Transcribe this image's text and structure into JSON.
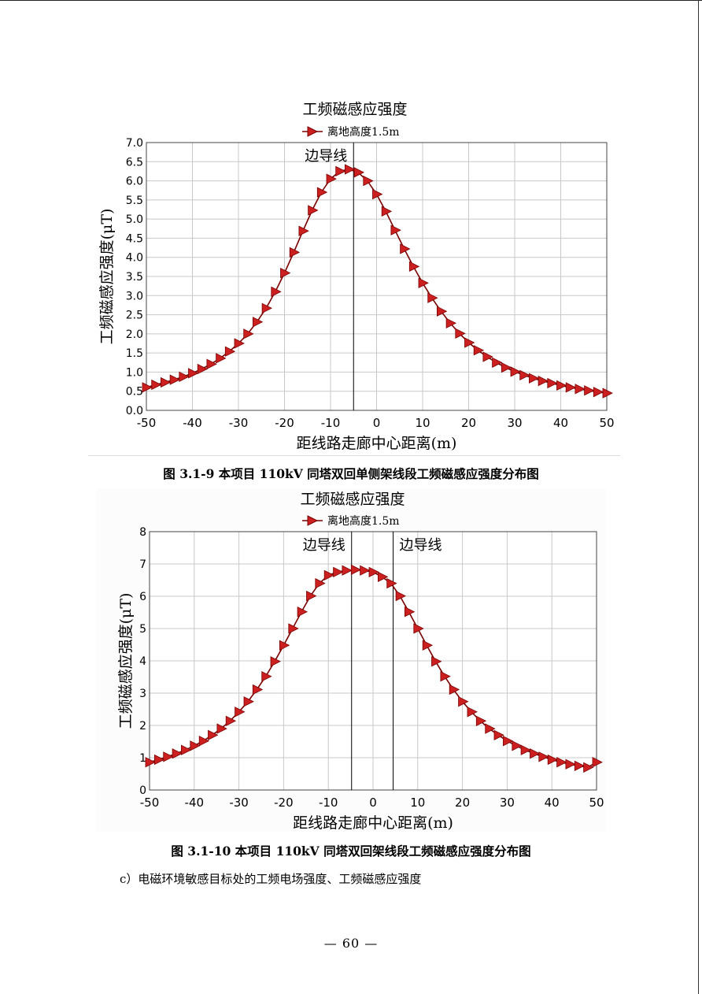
{
  "document": {
    "caption_1": "图 3.1-9  本项目 110kV 同塔双回单侧架线段工频磁感应强度分布图",
    "caption_2": "图 3.1-10    本项目 110kV 同塔双回架线段工频磁感应强度分布图",
    "body_text": "c）电磁环境敏感目标处的工频电场强度、工频磁感应强度",
    "page_number": "—  60  —"
  },
  "colors": {
    "marker_fill": "#cc1f1f",
    "marker_stroke": "#7a0000",
    "line": "#7a0000",
    "grid": "#c8c8c8",
    "axis": "#000000"
  },
  "chart_data": [
    {
      "type": "line",
      "title": "工频磁感应强度",
      "xlabel": "距线路走廊中心距离(m)",
      "ylabel": "工频磁感应强度(μT)",
      "xlim": [
        -50,
        50
      ],
      "ylim": [
        0,
        7
      ],
      "xticks": [
        -50,
        -40,
        -30,
        -20,
        -10,
        0,
        10,
        20,
        30,
        40,
        50
      ],
      "yticks": [
        0.0,
        0.5,
        1.0,
        1.5,
        2.0,
        2.5,
        3.0,
        3.5,
        4.0,
        4.5,
        5.0,
        5.5,
        6.0,
        6.5,
        7.0
      ],
      "ytick_decimals": 1,
      "grid": true,
      "legend_position": "top-center",
      "marker": "triangle-right",
      "annotations": [
        {
          "text": "边导线",
          "x": -5,
          "side": "left"
        }
      ],
      "series": [
        {
          "name": "离地高度1.5m",
          "x": [
            -50,
            -48,
            -46,
            -44,
            -42,
            -40,
            -38,
            -36,
            -34,
            -32,
            -30,
            -28,
            -26,
            -24,
            -22,
            -20,
            -18,
            -16,
            -14,
            -12,
            -10,
            -8,
            -6,
            -4,
            -2,
            0,
            2,
            4,
            6,
            8,
            10,
            12,
            14,
            16,
            18,
            20,
            22,
            24,
            26,
            28,
            30,
            32,
            34,
            36,
            38,
            40,
            42,
            44,
            46,
            48,
            50
          ],
          "y": [
            0.6,
            0.67,
            0.73,
            0.8,
            0.88,
            0.97,
            1.08,
            1.21,
            1.36,
            1.54,
            1.75,
            2.0,
            2.31,
            2.67,
            3.1,
            3.59,
            4.13,
            4.69,
            5.23,
            5.7,
            6.05,
            6.25,
            6.3,
            6.22,
            6.0,
            5.65,
            5.2,
            4.71,
            4.22,
            3.76,
            3.33,
            2.94,
            2.59,
            2.28,
            2.01,
            1.77,
            1.57,
            1.4,
            1.25,
            1.12,
            1.01,
            0.92,
            0.84,
            0.77,
            0.71,
            0.65,
            0.6,
            0.56,
            0.52,
            0.48,
            0.45
          ]
        }
      ]
    },
    {
      "type": "line",
      "title": "工频磁感应强度",
      "xlabel": "距线路走廊中心距离(m)",
      "ylabel": "工频磁感应强度(μT)",
      "xlim": [
        -50,
        50
      ],
      "ylim": [
        0,
        8
      ],
      "xticks": [
        -50,
        -40,
        -30,
        -20,
        -10,
        0,
        10,
        20,
        30,
        40,
        50
      ],
      "yticks": [
        0,
        1,
        2,
        3,
        4,
        5,
        6,
        7,
        8
      ],
      "ytick_decimals": 0,
      "grid": true,
      "legend_position": "top-center",
      "marker": "triangle-right",
      "annotations": [
        {
          "text": "边导线",
          "x": -4.8,
          "side": "left"
        },
        {
          "text": "边导线",
          "x": 4.5,
          "side": "right"
        }
      ],
      "series": [
        {
          "name": "离地高度1.5m",
          "x": [
            -50,
            -48,
            -46,
            -44,
            -42,
            -40,
            -38,
            -36,
            -34,
            -32,
            -30,
            -28,
            -26,
            -24,
            -22,
            -20,
            -18,
            -16,
            -14,
            -12,
            -10,
            -8,
            -6,
            -4,
            -2,
            0,
            2,
            4,
            6,
            8,
            10,
            12,
            14,
            16,
            18,
            20,
            22,
            24,
            26,
            28,
            30,
            32,
            34,
            36,
            38,
            40,
            42,
            44,
            46,
            48,
            50
          ],
          "y": [
            0.86,
            0.94,
            1.03,
            1.13,
            1.24,
            1.37,
            1.52,
            1.7,
            1.9,
            2.14,
            2.42,
            2.74,
            3.11,
            3.52,
            3.98,
            4.48,
            5.0,
            5.52,
            6.01,
            6.4,
            6.65,
            6.75,
            6.8,
            6.82,
            6.8,
            6.75,
            6.6,
            6.4,
            6.01,
            5.52,
            5.0,
            4.48,
            3.98,
            3.52,
            3.11,
            2.74,
            2.42,
            2.14,
            1.9,
            1.7,
            1.52,
            1.37,
            1.24,
            1.13,
            1.03,
            0.94,
            0.86,
            0.8,
            0.75,
            0.7,
            0.86
          ]
        }
      ]
    }
  ]
}
